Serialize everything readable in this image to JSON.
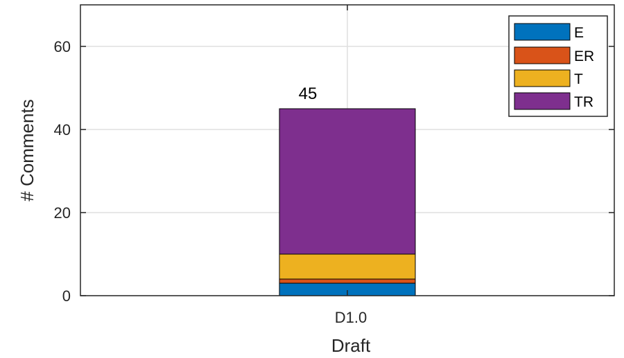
{
  "chart_data": {
    "type": "bar",
    "stacked": true,
    "categories": [
      "D1.0"
    ],
    "series": [
      {
        "name": "E",
        "values": [
          3
        ],
        "color": "#0072BD"
      },
      {
        "name": "ER",
        "values": [
          1
        ],
        "color": "#D95319"
      },
      {
        "name": "T",
        "values": [
          6
        ],
        "color": "#EDB120"
      },
      {
        "name": "TR",
        "values": [
          35
        ],
        "color": "#7E2F8E"
      }
    ],
    "total_labels": [
      "45"
    ],
    "xlabel": "Draft",
    "ylabel": "# Comments",
    "ylim": [
      0,
      70
    ],
    "yticks": [
      "0",
      "20",
      "40",
      "60"
    ],
    "grid": true,
    "legend_position": "top-right"
  }
}
